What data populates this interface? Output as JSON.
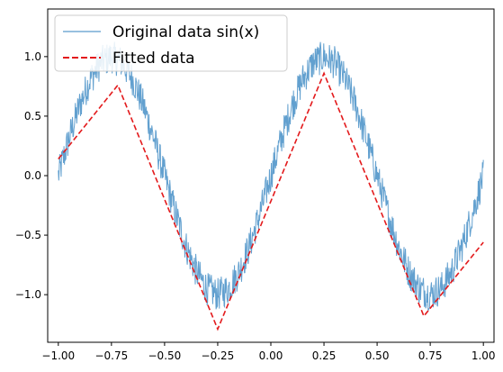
{
  "colors": {
    "original": "#5a9bcc",
    "fitted": "#e31a1c",
    "axes": "#000000",
    "background": "#ffffff",
    "legend_border": "#cccccc"
  },
  "chart_data": {
    "type": "line",
    "title": "",
    "xlabel": "",
    "ylabel": "",
    "xlim": [
      -1.05,
      1.05
    ],
    "ylim": [
      -1.4,
      1.4
    ],
    "x_ticks": [
      -1.0,
      -0.75,
      -0.5,
      -0.25,
      0.0,
      0.25,
      0.5,
      0.75,
      1.0
    ],
    "x_tick_labels": [
      "−1.00",
      "−0.75",
      "−0.50",
      "−0.25",
      "0.00",
      "0.25",
      "0.50",
      "0.75",
      "1.00"
    ],
    "y_ticks": [
      -1.0,
      -0.5,
      0.0,
      0.5,
      1.0
    ],
    "y_tick_labels": [
      "−1.0",
      "−0.5",
      "0.0",
      "0.5",
      "1.0"
    ],
    "grid": false,
    "legend_position": "top-left",
    "series": [
      {
        "name": "Original data sin(x)",
        "style": "solid-thin-noisy",
        "x": [
          -1.0,
          -0.95,
          -0.9,
          -0.85,
          -0.8,
          -0.75,
          -0.7,
          -0.65,
          -0.6,
          -0.55,
          -0.5,
          -0.45,
          -0.4,
          -0.35,
          -0.3,
          -0.25,
          -0.2,
          -0.15,
          -0.1,
          -0.05,
          0.0,
          0.05,
          0.1,
          0.15,
          0.2,
          0.25,
          0.3,
          0.35,
          0.4,
          0.45,
          0.5,
          0.55,
          0.6,
          0.65,
          0.7,
          0.75,
          0.8,
          0.85,
          0.9,
          0.95,
          1.0
        ],
        "y": [
          0.0,
          0.31,
          0.59,
          0.81,
          0.95,
          1.0,
          0.95,
          0.81,
          0.59,
          0.31,
          0.0,
          -0.31,
          -0.59,
          -0.81,
          -0.95,
          -1.0,
          -0.95,
          -0.81,
          -0.59,
          -0.31,
          0.0,
          0.31,
          0.59,
          0.81,
          0.95,
          1.0,
          0.95,
          0.81,
          0.59,
          0.31,
          0.0,
          -0.31,
          -0.59,
          -0.81,
          -0.95,
          -1.0,
          -0.95,
          -0.81,
          -0.59,
          -0.31,
          0.0
        ]
      },
      {
        "name": "Fitted data",
        "style": "dashed",
        "x": [
          -1.0,
          -0.72,
          -0.25,
          0.25,
          0.72,
          1.0
        ],
        "y": [
          0.14,
          0.76,
          -1.29,
          0.86,
          -1.18,
          -0.56
        ]
      }
    ]
  }
}
